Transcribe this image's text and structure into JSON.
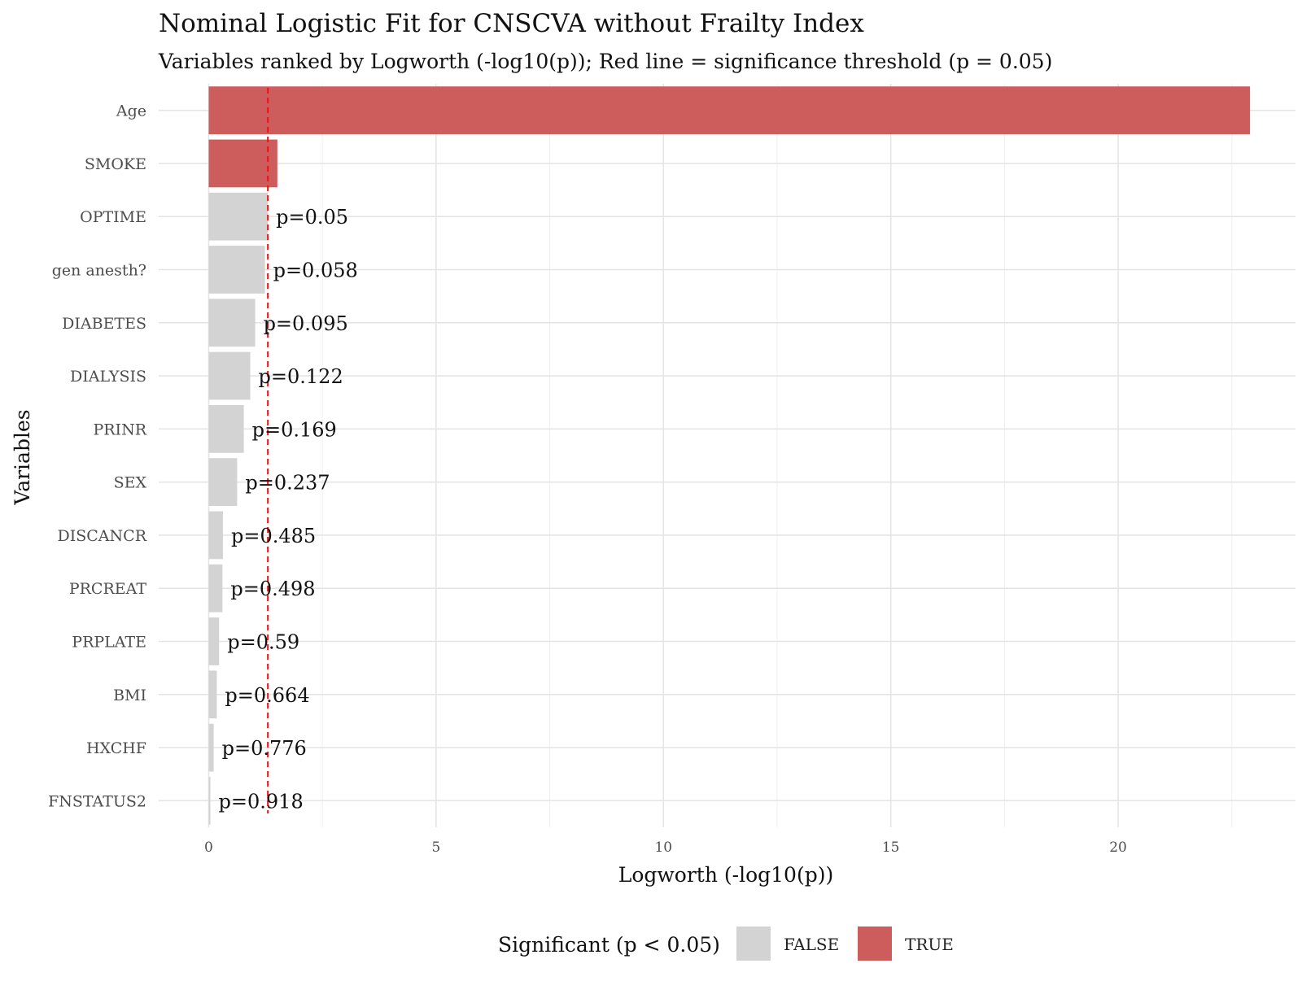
{
  "chart_data": {
    "type": "bar",
    "orientation": "horizontal",
    "title": "Nominal Logistic Fit for CNSCVA without Frailty Index",
    "subtitle": "Variables ranked by Logworth (-log10(p)); Red line = significance threshold (p = 0.05)",
    "xlabel": "Logworth (-log10(p))",
    "ylabel": "Variables",
    "xlim": [
      -1.1,
      23.9
    ],
    "xticks": [
      0,
      5,
      10,
      15,
      20
    ],
    "threshold": {
      "value": 1.301,
      "color": "#ee1111",
      "style": "dashed"
    },
    "categories": [
      "Age",
      "SMOKE",
      "OPTIME",
      "gen anesth?",
      "DIABETES",
      "DIALYSIS",
      "PRINR",
      "SEX",
      "DISCANCR",
      "PRCREAT",
      "PRPLATE",
      "BMI",
      "HXCHF",
      "FNSTATUS2"
    ],
    "values": [
      22.9,
      1.51,
      1.301,
      1.237,
      1.022,
      0.914,
      0.772,
      0.625,
      0.314,
      0.303,
      0.229,
      0.178,
      0.11,
      0.037
    ],
    "significant": [
      true,
      true,
      false,
      false,
      false,
      false,
      false,
      false,
      false,
      false,
      false,
      false,
      false,
      false
    ],
    "labels": [
      "",
      "",
      "p=0.05",
      "p=0.058",
      "p=0.095",
      "p=0.122",
      "p=0.169",
      "p=0.237",
      "p=0.485",
      "p=0.498",
      "p=0.59",
      "p=0.664",
      "p=0.776",
      "p=0.918"
    ],
    "grid": true,
    "legend": {
      "title": "Significant (p < 0.05)",
      "position": "bottom",
      "items": [
        {
          "label": "FALSE",
          "color": "#d3d3d3"
        },
        {
          "label": "TRUE",
          "color": "#cd5c5c"
        }
      ]
    }
  }
}
